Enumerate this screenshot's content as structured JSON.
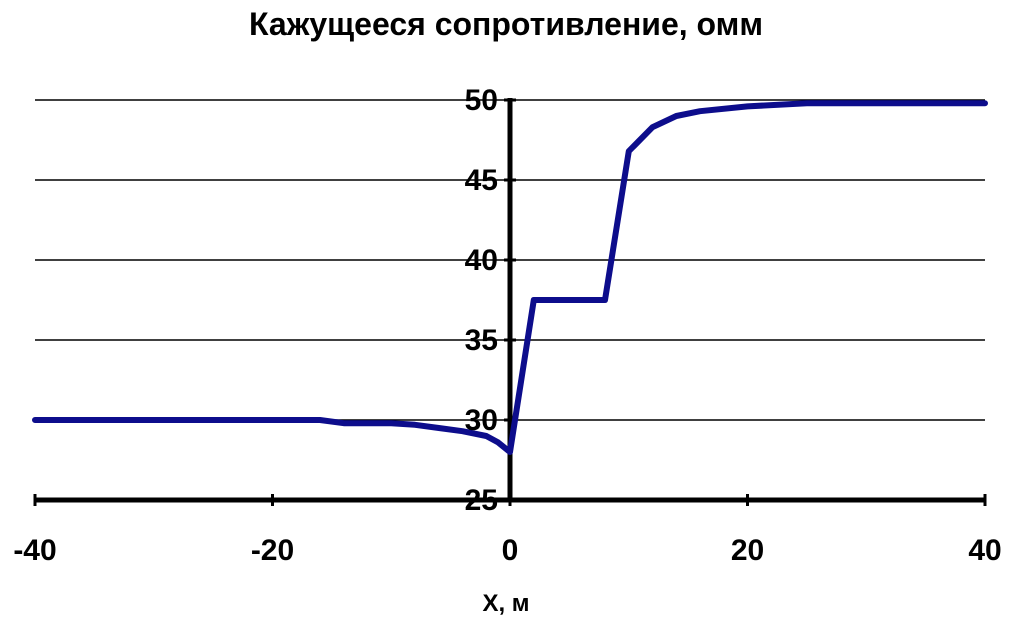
{
  "chart_data": {
    "type": "line",
    "title": "Кажущееся сопротивление, омм",
    "xlabel": "X, м",
    "ylabel": "",
    "xlim": [
      -40,
      40
    ],
    "ylim": [
      25,
      50
    ],
    "x_ticks": [
      -40,
      -20,
      0,
      20,
      40
    ],
    "y_ticks": [
      25,
      30,
      35,
      40,
      45,
      50
    ],
    "grid": "horizontal",
    "legend": "none",
    "line_color": "#0d0d8c",
    "series": [
      {
        "x": [
          -40,
          -30,
          -20,
          -16,
          -14,
          -10,
          -8,
          -6,
          -4,
          -2,
          -1,
          0,
          2,
          4,
          6,
          8,
          10,
          12,
          14,
          16,
          20,
          25,
          30,
          40
        ],
        "y": [
          30,
          30,
          30,
          30,
          29.8,
          29.8,
          29.7,
          29.5,
          29.3,
          29.0,
          28.6,
          28.0,
          37.5,
          37.5,
          37.5,
          37.5,
          46.8,
          48.3,
          49.0,
          49.3,
          49.6,
          49.8,
          49.8,
          49.8
        ]
      }
    ]
  }
}
